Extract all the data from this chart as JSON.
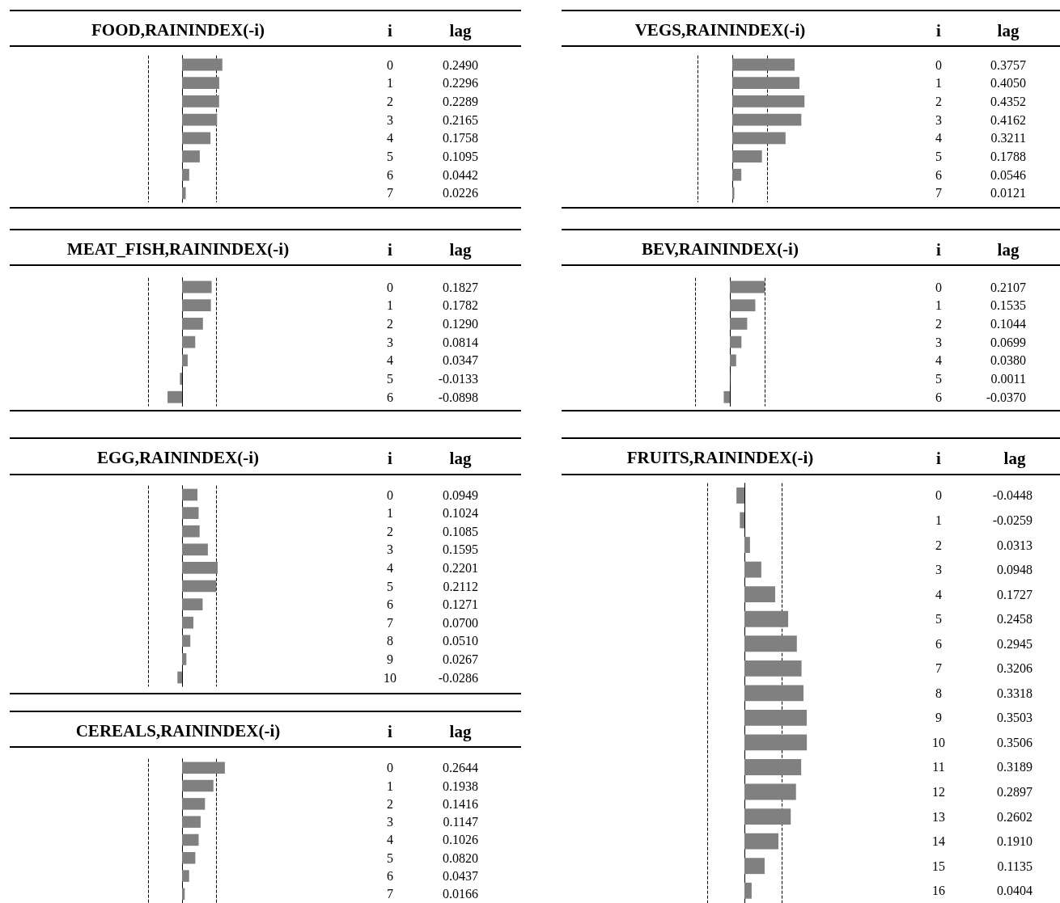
{
  "chart_data": [
    {
      "type": "bar",
      "orientation": "horizontal",
      "title": "FOOD,RAININDEX(-i)",
      "ylabel": "i",
      "annotations": [
        "lag"
      ],
      "categories": [
        "0",
        "1",
        "2",
        "3",
        "4",
        "5",
        "6",
        "7"
      ],
      "values": [
        0.249,
        0.2296,
        0.2289,
        0.2165,
        0.1758,
        0.1095,
        0.0442,
        0.0226
      ],
      "value_labels": [
        "0.2490",
        "0.2296",
        "0.2289",
        "0.2165",
        "0.1758",
        "0.1095",
        "0.0442",
        "0.0226"
      ],
      "color": "#808080",
      "tick_labels": "y",
      "ref_lines": [
        {
          "axis": "x",
          "value": -0.21,
          "line_style": "dashed"
        },
        {
          "axis": "x",
          "value": 0.21,
          "line_style": "dashed"
        }
      ]
    },
    {
      "type": "bar",
      "orientation": "horizontal",
      "title": "VEGS,RAININDEX(-i)",
      "ylabel": "i",
      "annotations": [
        "lag"
      ],
      "categories": [
        "0",
        "1",
        "2",
        "3",
        "4",
        "5",
        "6",
        "7"
      ],
      "values": [
        0.3757,
        0.405,
        0.4352,
        0.4162,
        0.3211,
        0.1788,
        0.0546,
        0.0121
      ],
      "value_labels": [
        "0.3757",
        "0.4050",
        "0.4352",
        "0.4162",
        "0.3211",
        "0.1788",
        "0.0546",
        "0.0121"
      ],
      "color": "#808080",
      "tick_labels": "y",
      "ref_lines": [
        {
          "axis": "x",
          "value": -0.21,
          "line_style": "dashed"
        },
        {
          "axis": "x",
          "value": 0.21,
          "line_style": "dashed"
        }
      ]
    },
    {
      "type": "bar",
      "orientation": "horizontal",
      "title": "MEAT_FISH,RAININDEX(-i)",
      "ylabel": "i",
      "annotations": [
        "lag"
      ],
      "categories": [
        "0",
        "1",
        "2",
        "3",
        "4",
        "5",
        "6"
      ],
      "values": [
        0.1827,
        0.1782,
        0.129,
        0.0814,
        0.0347,
        -0.0133,
        -0.0898
      ],
      "value_labels": [
        "0.1827",
        "0.1782",
        "0.1290",
        "0.0814",
        "0.0347",
        "-0.0133",
        "-0.0898"
      ],
      "color": "#808080",
      "tick_labels": "y",
      "ref_lines": [
        {
          "axis": "x",
          "value": -0.21,
          "line_style": "dashed"
        },
        {
          "axis": "x",
          "value": 0.21,
          "line_style": "dashed"
        }
      ]
    },
    {
      "type": "bar",
      "orientation": "horizontal",
      "title": "BEV,RAININDEX(-i)",
      "ylabel": "i",
      "annotations": [
        "lag"
      ],
      "categories": [
        "0",
        "1",
        "2",
        "3",
        "4",
        "5",
        "6"
      ],
      "values": [
        0.2107,
        0.1535,
        0.1044,
        0.0699,
        0.038,
        0.0011,
        -0.037
      ],
      "value_labels": [
        "0.2107",
        "0.1535",
        "0.1044",
        "0.0699",
        "0.0380",
        "0.0011",
        "-0.0370"
      ],
      "color": "#808080",
      "tick_labels": "y",
      "ref_lines": [
        {
          "axis": "x",
          "value": -0.21,
          "line_style": "dashed"
        },
        {
          "axis": "x",
          "value": 0.21,
          "line_style": "dashed"
        }
      ]
    },
    {
      "type": "bar",
      "orientation": "horizontal",
      "title": "EGG,RAININDEX(-i)",
      "ylabel": "i",
      "annotations": [
        "lag"
      ],
      "categories": [
        "0",
        "1",
        "2",
        "3",
        "4",
        "5",
        "6",
        "7",
        "8",
        "9",
        "10"
      ],
      "values": [
        0.0949,
        0.1024,
        0.1085,
        0.1595,
        0.2201,
        0.2112,
        0.1271,
        0.07,
        0.051,
        0.0267,
        -0.0286
      ],
      "value_labels": [
        "0.0949",
        "0.1024",
        "0.1085",
        "0.1595",
        "0.2201",
        "0.2112",
        "0.1271",
        "0.0700",
        "0.0510",
        "0.0267",
        "-0.0286"
      ],
      "color": "#808080",
      "tick_labels": "y",
      "ref_lines": [
        {
          "axis": "x",
          "value": -0.21,
          "line_style": "dashed"
        },
        {
          "axis": "x",
          "value": 0.21,
          "line_style": "dashed"
        }
      ]
    },
    {
      "type": "bar",
      "orientation": "horizontal",
      "title": "FRUITS,RAININDEX(-i)",
      "ylabel": "i",
      "annotations": [
        "lag"
      ],
      "categories": [
        "0",
        "1",
        "2",
        "3",
        "4",
        "5",
        "6",
        "7",
        "8",
        "9",
        "10",
        "11",
        "12",
        "13",
        "14",
        "15",
        "16"
      ],
      "values": [
        -0.0448,
        -0.0259,
        0.0313,
        0.0948,
        0.1727,
        0.2458,
        0.2945,
        0.3206,
        0.3318,
        0.3503,
        0.3506,
        0.3189,
        0.2897,
        0.2602,
        0.191,
        0.1135,
        0.0404
      ],
      "value_labels": [
        "-0.0448",
        "-0.0259",
        "0.0313",
        "0.0948",
        "0.1727",
        "0.2458",
        "0.2945",
        "0.3206",
        "0.3318",
        "0.3503",
        "0.3506",
        "0.3189",
        "0.2897",
        "0.2602",
        "0.1910",
        "0.1135",
        "0.0404"
      ],
      "color": "#808080",
      "tick_labels": "y",
      "ref_lines": [
        {
          "axis": "x",
          "value": -0.21,
          "line_style": "dashed"
        },
        {
          "axis": "x",
          "value": 0.21,
          "line_style": "dashed"
        }
      ]
    },
    {
      "type": "bar",
      "orientation": "horizontal",
      "title": "CEREALS,RAININDEX(-i)",
      "ylabel": "i",
      "annotations": [
        "lag"
      ],
      "categories": [
        "0",
        "1",
        "2",
        "3",
        "4",
        "5",
        "6",
        "7"
      ],
      "values": [
        0.2644,
        0.1938,
        0.1416,
        0.1147,
        0.1026,
        0.082,
        0.0437,
        0.0166
      ],
      "value_labels": [
        "0.2644",
        "0.1938",
        "0.1416",
        "0.1147",
        "0.1026",
        "0.0820",
        "0.0437",
        "0.0166"
      ],
      "color": "#808080",
      "tick_labels": "y",
      "ref_lines": [
        {
          "axis": "x",
          "value": -0.21,
          "line_style": "dashed"
        },
        {
          "axis": "x",
          "value": 0.21,
          "line_style": "dashed"
        }
      ]
    }
  ]
}
